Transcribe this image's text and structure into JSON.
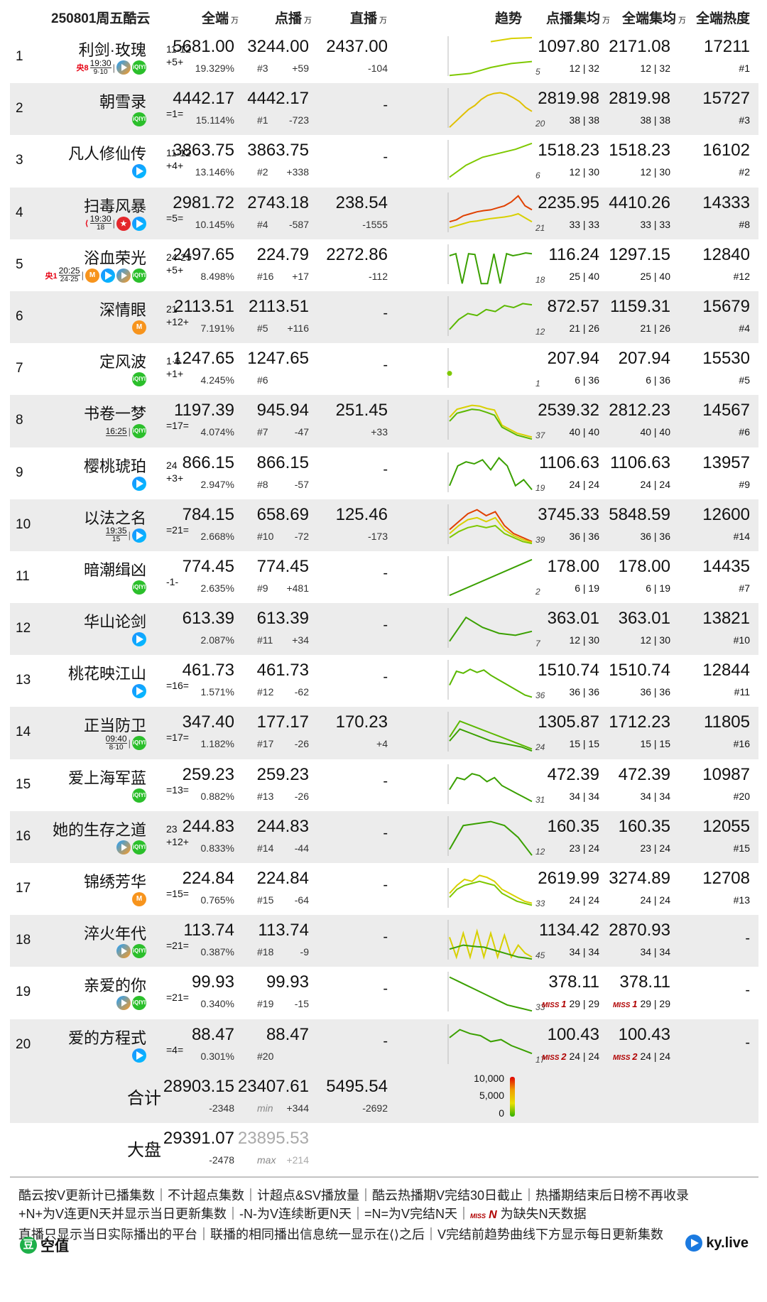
{
  "header": {
    "date_title": "250801周五酷云",
    "col_total": "全端",
    "col_dianbo": "点播",
    "col_live": "直播",
    "col_trend": "趋势",
    "col_davg": "点播集均",
    "col_aavg": "全端集均",
    "col_heat": "全端热度",
    "unit": "万"
  },
  "rows": [
    {
      "rank": "1",
      "name": "利剑·玫瑰",
      "ep": "11·12",
      "chg": "+5+",
      "bcast": [
        {
          "ch": "央8",
          "time": "19:30",
          "eps": "9·10"
        }
      ],
      "platforms": [
        "tx",
        "iq"
      ],
      "total": "5681.00",
      "total_pct": "19.329%",
      "dianbo": "3244.00",
      "dianbo_rank": "#3",
      "dianbo_delta": "+59",
      "live": "2437.00",
      "live_delta": "-104",
      "days": "5",
      "davg": "1097.80",
      "davg_sub": "12 | 32",
      "aavg": "2171.08",
      "aavg_sub": "12 | 32",
      "heat": "17211",
      "heat_rank": "#1",
      "trend": [
        [
          null,
          null,
          90,
          98,
          100
        ],
        [
          5,
          10,
          25,
          35,
          40
        ]
      ],
      "tc": [
        "#d8d000",
        "#7ec800"
      ]
    },
    {
      "rank": "2",
      "name": "朝雪录",
      "ep": "",
      "chg": "=1=",
      "bcast": [],
      "platforms": [
        "iq"
      ],
      "total": "4442.17",
      "total_pct": "15.114%",
      "dianbo": "4442.17",
      "dianbo_rank": "#1",
      "dianbo_delta": "-723",
      "live": "-",
      "live_delta": "",
      "days": "20",
      "davg": "2819.98",
      "davg_sub": "38 | 38",
      "aavg": "2819.98",
      "aavg_sub": "38 | 38",
      "heat": "15727",
      "heat_rank": "#3",
      "trend": [
        [
          5,
          20,
          35,
          50,
          60,
          75,
          85,
          90,
          92,
          88,
          80,
          70,
          55,
          45
        ]
      ],
      "tc": [
        "#e0c000"
      ]
    },
    {
      "rank": "3",
      "name": "凡人修仙传",
      "ep": "11·12",
      "chg": "+4+",
      "bcast": [],
      "platforms": [
        "yk"
      ],
      "total": "3863.75",
      "total_pct": "13.146%",
      "dianbo": "3863.75",
      "dianbo_rank": "#2",
      "dianbo_delta": "+338",
      "live": "-",
      "live_delta": "",
      "days": "6",
      "davg": "1518.23",
      "davg_sub": "12 | 30",
      "aavg": "1518.23",
      "aavg_sub": "12 | 30",
      "heat": "16102",
      "heat_rank": "#2",
      "trend": [
        [
          10,
          40,
          60,
          70,
          80,
          95
        ]
      ],
      "tc": [
        "#7ec800"
      ]
    },
    {
      "rank": "4",
      "name": "扫毒风暴",
      "ep": "",
      "chg": "=5=",
      "bcast": [
        {
          "ch": "⟨",
          "time": "19:30",
          "eps": "18"
        }
      ],
      "platforms": [
        "hn",
        "yk"
      ],
      "total": "2981.72",
      "total_pct": "10.145%",
      "dianbo": "2743.18",
      "dianbo_rank": "#4",
      "dianbo_delta": "-587",
      "live": "238.54",
      "live_delta": "-1555",
      "days": "21",
      "davg": "2235.95",
      "davg_sub": "33 | 33",
      "aavg": "4410.26",
      "aavg_sub": "33 | 33",
      "heat": "14333",
      "heat_rank": "#8",
      "trend": [
        [
          30,
          35,
          45,
          50,
          55,
          58,
          60,
          65,
          70,
          80,
          95,
          70,
          60
        ],
        [
          15,
          20,
          25,
          30,
          32,
          35,
          38,
          40,
          42,
          45,
          50,
          40,
          30
        ]
      ],
      "tc": [
        "#e04000",
        "#d8d000"
      ]
    },
    {
      "rank": "5",
      "name": "浴血荣光",
      "ep": "24·25",
      "chg": "+5+",
      "bcast": [
        {
          "ch": "央1",
          "time": "20:25",
          "eps": "24·25"
        }
      ],
      "platforms": [
        "mg",
        "yk",
        "tx",
        "iq"
      ],
      "total": "2497.65",
      "total_pct": "8.498%",
      "dianbo": "224.79",
      "dianbo_rank": "#16",
      "dianbo_delta": "+17",
      "live": "2272.86",
      "live_delta": "-112",
      "days": "18",
      "davg": "116.24",
      "davg_sub": "25 | 40",
      "aavg": "1297.15",
      "aavg_sub": "25 | 40",
      "heat": "12840",
      "heat_rank": "#12",
      "trend": [
        [
          75,
          80,
          5,
          80,
          78,
          5,
          5,
          80,
          5,
          80,
          75,
          78,
          82,
          80
        ]
      ],
      "tc": [
        "#3aa000"
      ]
    },
    {
      "rank": "6",
      "name": "深情眼",
      "ep": "21",
      "chg": "+12+",
      "bcast": [],
      "platforms": [
        "mg"
      ],
      "total": "2113.51",
      "total_pct": "7.191%",
      "dianbo": "2113.51",
      "dianbo_rank": "#5",
      "dianbo_delta": "+116",
      "live": "-",
      "live_delta": "",
      "days": "12",
      "davg": "872.57",
      "davg_sub": "21 | 26",
      "aavg": "1159.31",
      "aavg_sub": "21 | 26",
      "heat": "15679",
      "heat_rank": "#4",
      "trend": [
        [
          20,
          45,
          60,
          55,
          70,
          65,
          80,
          75,
          85,
          82
        ]
      ],
      "tc": [
        "#5bb800"
      ]
    },
    {
      "rank": "7",
      "name": "定风波",
      "ep": "1·6",
      "chg": "+1+",
      "bcast": [],
      "platforms": [
        "iq"
      ],
      "total": "1247.65",
      "total_pct": "4.245%",
      "dianbo": "1247.65",
      "dianbo_rank": "#6",
      "dianbo_delta": "",
      "live": "-",
      "live_delta": "",
      "days": "1",
      "davg": "207.94",
      "davg_sub": "6 | 36",
      "aavg": "207.94",
      "aavg_sub": "6 | 36",
      "heat": "15530",
      "heat_rank": "#5",
      "trend": [
        [
          40
        ]
      ],
      "tc": [
        "#7ec800"
      ]
    },
    {
      "rank": "8",
      "name": "书卷一梦",
      "ep": "",
      "chg": "=17=",
      "bcast": [
        {
          "ch": "",
          "time": "16:25",
          "eps": ""
        }
      ],
      "platforms": [
        "iq"
      ],
      "total": "1197.39",
      "total_pct": "4.074%",
      "dianbo": "945.94",
      "dianbo_rank": "#7",
      "dianbo_delta": "-47",
      "live": "251.45",
      "live_delta": "+33",
      "days": "37",
      "davg": "2539.32",
      "davg_sub": "40 | 40",
      "aavg": "2812.23",
      "aavg_sub": "40 | 40",
      "heat": "14567",
      "heat_rank": "#6",
      "trend": [
        [
          60,
          80,
          85,
          90,
          88,
          82,
          78,
          40,
          30,
          20,
          15,
          10
        ],
        [
          50,
          70,
          75,
          80,
          78,
          72,
          65,
          35,
          25,
          15,
          10,
          5
        ]
      ],
      "tc": [
        "#d8d000",
        "#5bb800"
      ]
    },
    {
      "rank": "9",
      "name": "樱桃琥珀",
      "ep": "24",
      "chg": "+3+",
      "bcast": [],
      "platforms": [
        "yk"
      ],
      "total": "866.15",
      "total_pct": "2.947%",
      "dianbo": "866.15",
      "dianbo_rank": "#8",
      "dianbo_delta": "-57",
      "live": "-",
      "live_delta": "",
      "days": "19",
      "davg": "1106.63",
      "davg_sub": "24 | 24",
      "aavg": "1106.63",
      "aavg_sub": "24 | 24",
      "heat": "13957",
      "heat_rank": "#9",
      "trend": [
        [
          20,
          70,
          80,
          75,
          85,
          60,
          90,
          70,
          20,
          35,
          10
        ]
      ],
      "tc": [
        "#3aa000"
      ]
    },
    {
      "rank": "10",
      "name": "以法之名",
      "ep": "",
      "chg": "=21=",
      "bcast": [
        {
          "ch": "",
          "time": "19:35",
          "eps": "15"
        }
      ],
      "platforms": [
        "yk"
      ],
      "total": "784.15",
      "total_pct": "2.668%",
      "dianbo": "658.69",
      "dianbo_rank": "#10",
      "dianbo_delta": "-72",
      "live": "125.46",
      "live_delta": "-173",
      "days": "39",
      "davg": "3745.33",
      "davg_sub": "36 | 36",
      "aavg": "5848.59",
      "aavg_sub": "36 | 36",
      "heat": "12600",
      "heat_rank": "#14",
      "trend": [
        [
          40,
          60,
          80,
          90,
          75,
          85,
          50,
          30,
          20,
          10
        ],
        [
          30,
          50,
          65,
          70,
          60,
          70,
          40,
          25,
          15,
          8
        ],
        [
          20,
          35,
          45,
          50,
          45,
          50,
          30,
          20,
          10,
          5
        ]
      ],
      "tc": [
        "#e04000",
        "#d8d000",
        "#7ec800"
      ]
    },
    {
      "rank": "11",
      "name": "暗潮缉凶",
      "ep": "",
      "chg": "-1-",
      "bcast": [],
      "platforms": [
        "iq"
      ],
      "total": "774.45",
      "total_pct": "2.635%",
      "dianbo": "774.45",
      "dianbo_rank": "#9",
      "dianbo_delta": "+481",
      "live": "-",
      "live_delta": "",
      "days": "2",
      "davg": "178.00",
      "davg_sub": "6 | 19",
      "aavg": "178.00",
      "aavg_sub": "6 | 19",
      "heat": "14435",
      "heat_rank": "#7",
      "trend": [
        [
          5,
          95
        ]
      ],
      "tc": [
        "#3aa000"
      ]
    },
    {
      "rank": "12",
      "name": "华山论剑",
      "ep": "",
      "chg": "",
      "bcast": [],
      "platforms": [
        "yk"
      ],
      "total": "613.39",
      "total_pct": "2.087%",
      "dianbo": "613.39",
      "dianbo_rank": "#11",
      "dianbo_delta": "+34",
      "live": "-",
      "live_delta": "",
      "days": "7",
      "davg": "363.01",
      "davg_sub": "12 | 30",
      "aavg": "363.01",
      "aavg_sub": "12 | 30",
      "heat": "13821",
      "heat_rank": "#10",
      "trend": [
        [
          20,
          80,
          55,
          40,
          35,
          45
        ]
      ],
      "tc": [
        "#3aa000"
      ]
    },
    {
      "rank": "13",
      "name": "桃花映江山",
      "ep": "",
      "chg": "=16=",
      "bcast": [],
      "platforms": [
        "yk"
      ],
      "total": "461.73",
      "total_pct": "1.571%",
      "dianbo": "461.73",
      "dianbo_rank": "#12",
      "dianbo_delta": "-62",
      "live": "-",
      "live_delta": "",
      "days": "36",
      "davg": "1510.74",
      "davg_sub": "36 | 36",
      "aavg": "1510.74",
      "aavg_sub": "36 | 36",
      "heat": "12844",
      "heat_rank": "#11",
      "trend": [
        [
          40,
          75,
          70,
          80,
          72,
          78,
          65,
          55,
          45,
          35,
          25,
          15,
          10
        ]
      ],
      "tc": [
        "#5bb800"
      ]
    },
    {
      "rank": "14",
      "name": "正当防卫",
      "ep": "",
      "chg": "=17=",
      "bcast": [
        {
          "ch": "",
          "time": "09:40",
          "eps": "8·10"
        }
      ],
      "platforms": [
        "iq"
      ],
      "total": "347.40",
      "total_pct": "1.182%",
      "dianbo": "177.17",
      "dianbo_rank": "#17",
      "dianbo_delta": "-26",
      "live": "170.23",
      "live_delta": "+4",
      "days": "24",
      "davg": "1305.87",
      "davg_sub": "15 | 15",
      "aavg": "1712.23",
      "aavg_sub": "15 | 15",
      "heat": "11805",
      "heat_rank": "#16",
      "trend": [
        [
          40,
          80,
          70,
          60,
          50,
          40,
          30,
          20,
          10
        ],
        [
          30,
          60,
          50,
          40,
          30,
          25,
          20,
          15,
          5
        ]
      ],
      "tc": [
        "#5bb800",
        "#3aa000"
      ]
    },
    {
      "rank": "15",
      "name": "爱上海军蓝",
      "ep": "",
      "chg": "=13=",
      "bcast": [],
      "platforms": [
        "iq"
      ],
      "total": "259.23",
      "total_pct": "0.882%",
      "dianbo": "259.23",
      "dianbo_rank": "#13",
      "dianbo_delta": "-26",
      "live": "-",
      "live_delta": "",
      "days": "31",
      "davg": "472.39",
      "davg_sub": "34 | 34",
      "aavg": "472.39",
      "aavg_sub": "34 | 34",
      "heat": "10987",
      "heat_rank": "#20",
      "trend": [
        [
          40,
          70,
          65,
          80,
          75,
          60,
          70,
          50,
          40,
          30,
          20,
          10
        ]
      ],
      "tc": [
        "#3aa000"
      ]
    },
    {
      "rank": "16",
      "name": "她的生存之道",
      "ep": "23",
      "chg": "+12+",
      "bcast": [],
      "platforms": [
        "tx",
        "iq"
      ],
      "total": "244.83",
      "total_pct": "0.833%",
      "dianbo": "244.83",
      "dianbo_rank": "#14",
      "dianbo_delta": "-44",
      "live": "-",
      "live_delta": "",
      "days": "12",
      "davg": "160.35",
      "davg_sub": "23 | 24",
      "aavg": "160.35",
      "aavg_sub": "23 | 24",
      "heat": "12055",
      "heat_rank": "#15",
      "trend": [
        [
          20,
          80,
          85,
          90,
          80,
          50,
          5
        ]
      ],
      "tc": [
        "#3aa000"
      ]
    },
    {
      "rank": "17",
      "name": "锦绣芳华",
      "ep": "",
      "chg": "=15=",
      "bcast": [],
      "platforms": [
        "mg"
      ],
      "total": "224.84",
      "total_pct": "0.765%",
      "dianbo": "224.84",
      "dianbo_rank": "#15",
      "dianbo_delta": "-64",
      "live": "-",
      "live_delta": "",
      "days": "33",
      "davg": "2619.99",
      "davg_sub": "24 | 24",
      "aavg": "3274.89",
      "aavg_sub": "24 | 24",
      "heat": "12708",
      "heat_rank": "#13",
      "trend": [
        [
          40,
          60,
          75,
          70,
          85,
          80,
          70,
          50,
          40,
          30,
          20,
          15
        ],
        [
          30,
          50,
          60,
          65,
          70,
          65,
          60,
          40,
          30,
          20,
          15,
          10
        ]
      ],
      "tc": [
        "#d8d000",
        "#7ec800"
      ]
    },
    {
      "rank": "18",
      "name": "淬火年代",
      "ep": "",
      "chg": "=21=",
      "bcast": [],
      "platforms": [
        "tx",
        "iq"
      ],
      "total": "113.74",
      "total_pct": "0.387%",
      "dianbo": "113.74",
      "dianbo_rank": "#18",
      "dianbo_delta": "-9",
      "live": "-",
      "live_delta": "",
      "days": "45",
      "davg": "1134.42",
      "davg_sub": "34 | 34",
      "aavg": "2870.93",
      "aavg_sub": "34 | 34",
      "heat": "-",
      "heat_rank": "",
      "trend": [
        [
          60,
          10,
          70,
          10,
          75,
          10,
          70,
          10,
          65,
          10,
          40,
          20,
          10
        ],
        [
          30,
          35,
          40,
          38,
          36,
          35,
          30,
          25,
          20,
          15,
          10,
          8,
          5
        ]
      ],
      "tc": [
        "#d8d000",
        "#3aa000"
      ]
    },
    {
      "rank": "19",
      "name": "亲爱的你",
      "ep": "",
      "chg": "=21=",
      "bcast": [],
      "platforms": [
        "tx",
        "iq"
      ],
      "total": "99.93",
      "total_pct": "0.340%",
      "dianbo": "99.93",
      "dianbo_rank": "#19",
      "dianbo_delta": "-15",
      "live": "-",
      "live_delta": "",
      "days": "33",
      "davg": "378.11",
      "davg_sub": "29 | 29",
      "davg_miss": "1",
      "aavg": "378.11",
      "aavg_sub": "29 | 29",
      "aavg_miss": "1",
      "heat": "-",
      "heat_rank": "",
      "trend": [
        [
          90,
          80,
          70,
          60,
          50,
          40,
          30,
          20,
          15,
          10,
          5
        ]
      ],
      "tc": [
        "#3aa000"
      ]
    },
    {
      "rank": "20",
      "name": "爱的方程式",
      "ep": "",
      "chg": "=4=",
      "bcast": [],
      "platforms": [
        "yk"
      ],
      "total": "88.47",
      "total_pct": "0.301%",
      "dianbo": "88.47",
      "dianbo_rank": "#20",
      "dianbo_delta": "",
      "live": "-",
      "live_delta": "",
      "days": "17",
      "davg": "100.43",
      "davg_sub": "24 | 24",
      "davg_miss": "2",
      "aavg": "100.43",
      "aavg_sub": "24 | 24",
      "aavg_miss": "2",
      "heat": "-",
      "heat_rank": "",
      "trend": [
        [
          70,
          90,
          80,
          75,
          60,
          65,
          50,
          40,
          30
        ]
      ],
      "tc": [
        "#3aa000"
      ]
    }
  ],
  "summary": {
    "total_label": "合计",
    "total_total": "28903.15",
    "total_total_delta": "-2348",
    "total_dianbo": "23407.61",
    "total_dianbo_tag": "min",
    "total_dianbo_delta": "+344",
    "total_live": "5495.54",
    "total_live_delta": "-2692",
    "legend_high": "10,000",
    "legend_mid": "5,000",
    "legend_low": "0",
    "market_label": "大盘",
    "market_total": "29391.07",
    "market_total_delta": "-2478",
    "market_dianbo": "23895.53",
    "market_dianbo_tag": "max",
    "market_dianbo_delta": "+214"
  },
  "footer": {
    "line1": "酷云按V更新计已播集数｜不计超点集数｜计超点&SV播放量｜酷云热播期V完结30日截止｜热播期结束后日榜不再收录",
    "line2a": "+N+为V连更N天并显示当日更新集数｜-N-为V连续断更N天｜=N=为V完结N天｜",
    "line2_miss": "MISS",
    "line2_n": "N",
    "line2b": " 为缺失N天数据",
    "line3": "直播只显示当日实际播出的平台｜联播的相同播出信息统一显示在⟨⟩之后｜V完结前趋势曲线下方显示每日更新集数",
    "brand_left": "空值",
    "brand_left_icon": "豆",
    "brand_right": "ky.live"
  },
  "colors": {
    "row_alt": "#ececec",
    "miss_red": "#b00000"
  }
}
